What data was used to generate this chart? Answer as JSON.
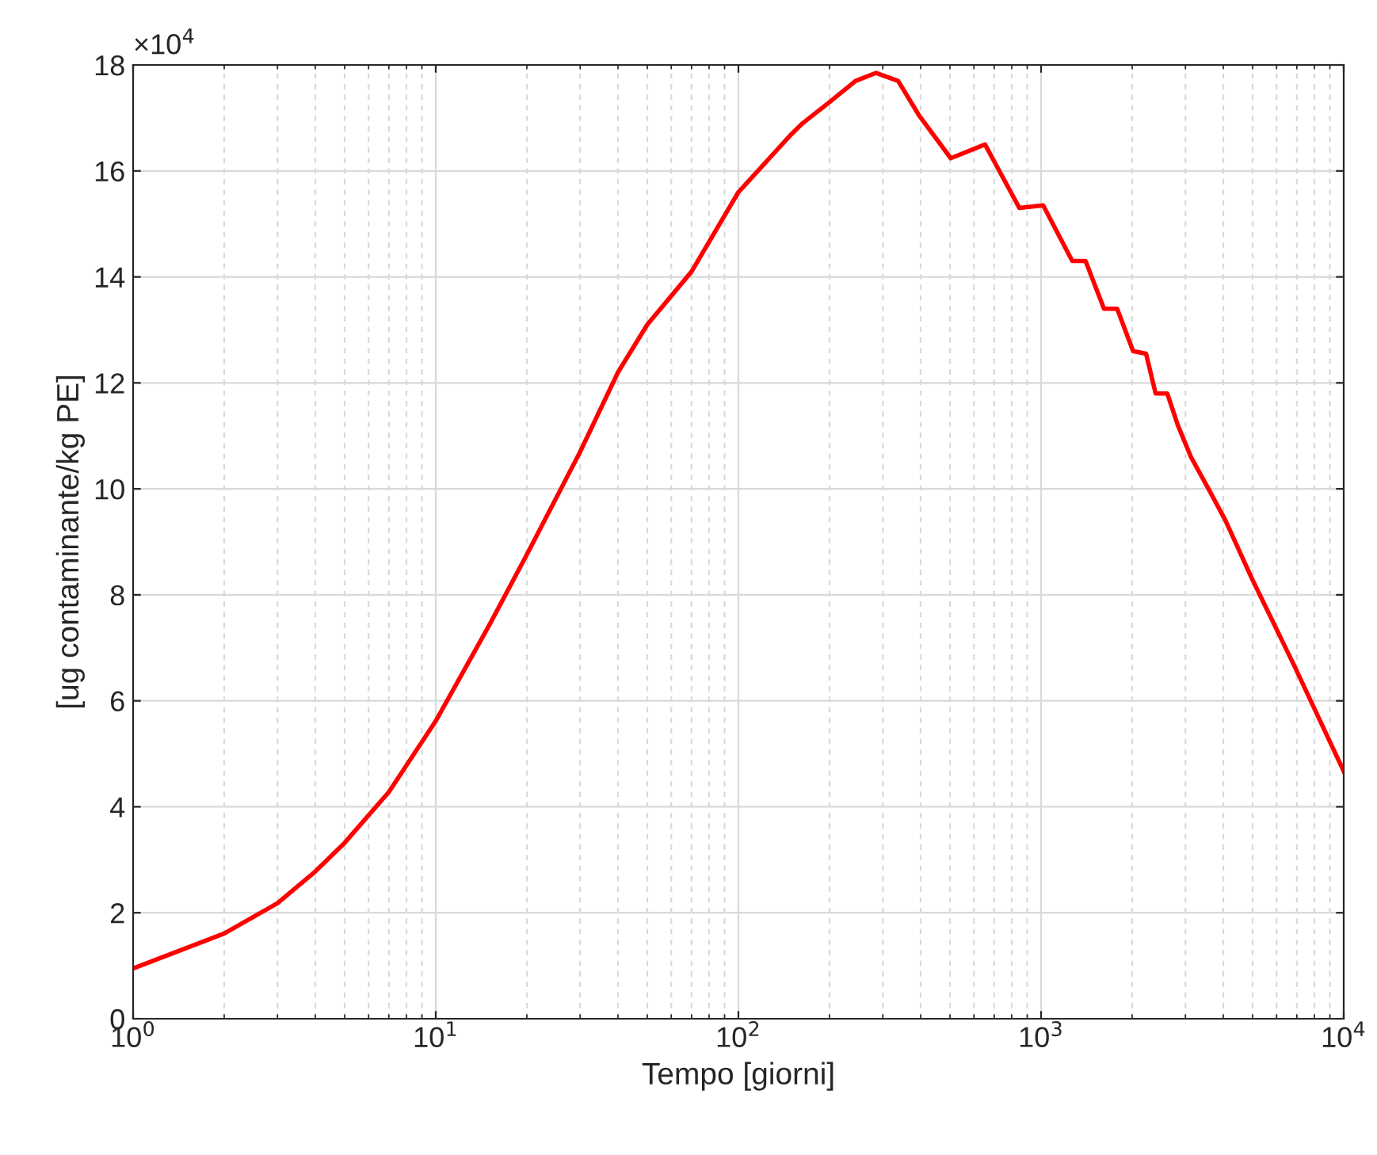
{
  "chart_data": {
    "type": "line",
    "xlabel": "Tempo [giorni]",
    "ylabel": "[ug contaminante/kg PE]",
    "log": "x",
    "grid": true,
    "line_style": "solid",
    "marker": "none",
    "annotations": [
      "×10$^{4}$"
    ],
    "xlim": [
      1,
      10000
    ],
    "xticks": [
      {
        "value": 1,
        "label": "10$^{0}$"
      },
      {
        "value": 10,
        "label": "10$^{1}$"
      },
      {
        "value": 100,
        "label": "10$^{2}$"
      },
      {
        "value": 1000,
        "label": "10$^{3}$"
      },
      {
        "value": 10000,
        "label": "10$^{4}$"
      }
    ],
    "ylim": [
      0,
      18
    ],
    "yticks": [
      0,
      2,
      4,
      6,
      8,
      10,
      12,
      14,
      16,
      18
    ],
    "series": [
      {
        "color": "#ff0000",
        "x": [
          1,
          2,
          3,
          4,
          5,
          7,
          10,
          15,
          20,
          30,
          40,
          50,
          70,
          100,
          150,
          163,
          200,
          244,
          285,
          337,
          395,
          503,
          653,
          848,
          1016,
          1268,
          1403,
          1614,
          1784,
          2014,
          2223,
          2390,
          2612,
          2831,
          3129,
          3527,
          4062,
          4970,
          6855,
          10000
        ],
        "values": [
          0.95,
          1.61,
          2.18,
          2.78,
          3.32,
          4.28,
          5.62,
          7.42,
          8.76,
          10.7,
          12.2,
          13.1,
          14.1,
          15.6,
          16.7,
          16.9,
          17.3,
          17.7,
          17.85,
          17.7,
          17.05,
          16.24,
          16.5,
          15.3,
          15.35,
          14.3,
          14.3,
          13.4,
          13.4,
          12.6,
          12.55,
          11.8,
          11.8,
          11.2,
          10.6,
          10.06,
          9.41,
          8.31,
          6.67,
          4.67
        ]
      }
    ]
  }
}
